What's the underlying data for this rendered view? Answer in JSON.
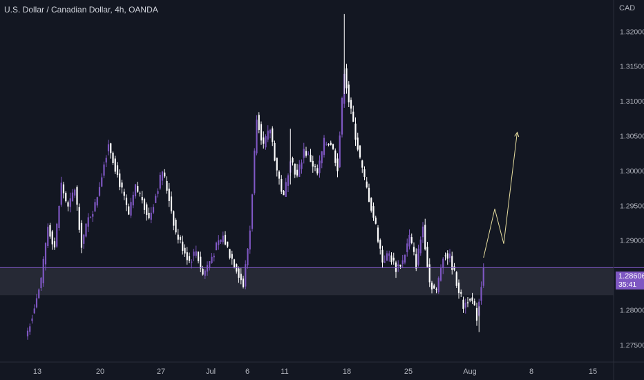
{
  "title": "U.S. Dollar / Canadian Dollar, 4h, OANDA",
  "currency": "CAD",
  "last_price_label": "1.28606",
  "countdown": "35:41",
  "colors": {
    "background": "#131722",
    "up": "#7e57c2",
    "down": "#ffffff",
    "zone": "#2a2d38",
    "projection": "#e8dfa0",
    "price_line": "#7e57c2",
    "axis_text": "#b2b5be"
  },
  "chart_data": {
    "type": "candlestick",
    "symbol": "USDCAD",
    "timeframe": "4h",
    "source": "OANDA",
    "y_ticks": [
      "1.27500",
      "1.28000",
      "1.28500",
      "1.29000",
      "1.29500",
      "1.30000",
      "1.30500",
      "1.31000",
      "1.31500",
      "1.32000"
    ],
    "y_ticks_values": [
      1.275,
      1.28,
      1.285,
      1.29,
      1.295,
      1.3,
      1.305,
      1.31,
      1.315,
      1.32
    ],
    "x_ticks": [
      "13",
      "20",
      "27",
      "Jul",
      "6",
      "11",
      "18",
      "25",
      "Aug",
      "8",
      "15"
    ],
    "ylim": [
      1.2725,
      1.3245
    ],
    "close_series": [
      [
        0,
        1.277
      ],
      [
        6,
        1.284
      ],
      [
        9,
        1.292
      ],
      [
        12,
        1.289
      ],
      [
        15,
        1.298
      ],
      [
        18,
        1.2945
      ],
      [
        21,
        1.2975
      ],
      [
        24,
        1.2895
      ],
      [
        27,
        1.293
      ],
      [
        30,
        1.295
      ],
      [
        36,
        1.304
      ],
      [
        39,
        1.3005
      ],
      [
        45,
        1.2935
      ],
      [
        48,
        1.2975
      ],
      [
        51,
        1.296
      ],
      [
        54,
        1.293
      ],
      [
        60,
        1.3
      ],
      [
        63,
        1.296
      ],
      [
        66,
        1.291
      ],
      [
        72,
        1.287
      ],
      [
        75,
        1.2885
      ],
      [
        78,
        1.285
      ],
      [
        84,
        1.289
      ],
      [
        87,
        1.2905
      ],
      [
        90,
        1.288
      ],
      [
        93,
        1.286
      ],
      [
        96,
        1.2835
      ],
      [
        99,
        1.2915
      ],
      [
        102,
        1.308
      ],
      [
        105,
        1.3035
      ],
      [
        108,
        1.306
      ],
      [
        111,
        1.3
      ],
      [
        114,
        1.296
      ],
      [
        117,
        1.302
      ],
      [
        120,
        1.299
      ],
      [
        123,
        1.303
      ],
      [
        126,
        1.3015
      ],
      [
        129,
        1.2995
      ],
      [
        132,
        1.304
      ],
      [
        135,
        1.304
      ],
      [
        138,
        1.3005
      ],
      [
        141,
        1.3145
      ],
      [
        143,
        1.31
      ],
      [
        146,
        1.305
      ],
      [
        149,
        1.3
      ],
      [
        152,
        1.296
      ],
      [
        155,
        1.292
      ],
      [
        158,
        1.287
      ],
      [
        161,
        1.288
      ],
      [
        164,
        1.286
      ],
      [
        167,
        1.287
      ],
      [
        170,
        1.2905
      ],
      [
        173,
        1.2865
      ],
      [
        176,
        1.292
      ],
      [
        179,
        1.284
      ],
      [
        182,
        1.2825
      ],
      [
        185,
        1.288
      ],
      [
        188,
        1.2875
      ],
      [
        191,
        1.284
      ],
      [
        194,
        1.2805
      ],
      [
        197,
        1.282
      ],
      [
        200,
        1.279
      ],
      [
        203,
        1.286
      ]
    ],
    "projection": [
      [
        203,
        1.2875
      ],
      [
        208,
        1.2945
      ],
      [
        212,
        1.2895
      ],
      [
        218,
        1.3055
      ]
    ],
    "last_price": 1.28606,
    "highlight_zone": [
      1.2821,
      1.2861
    ]
  }
}
